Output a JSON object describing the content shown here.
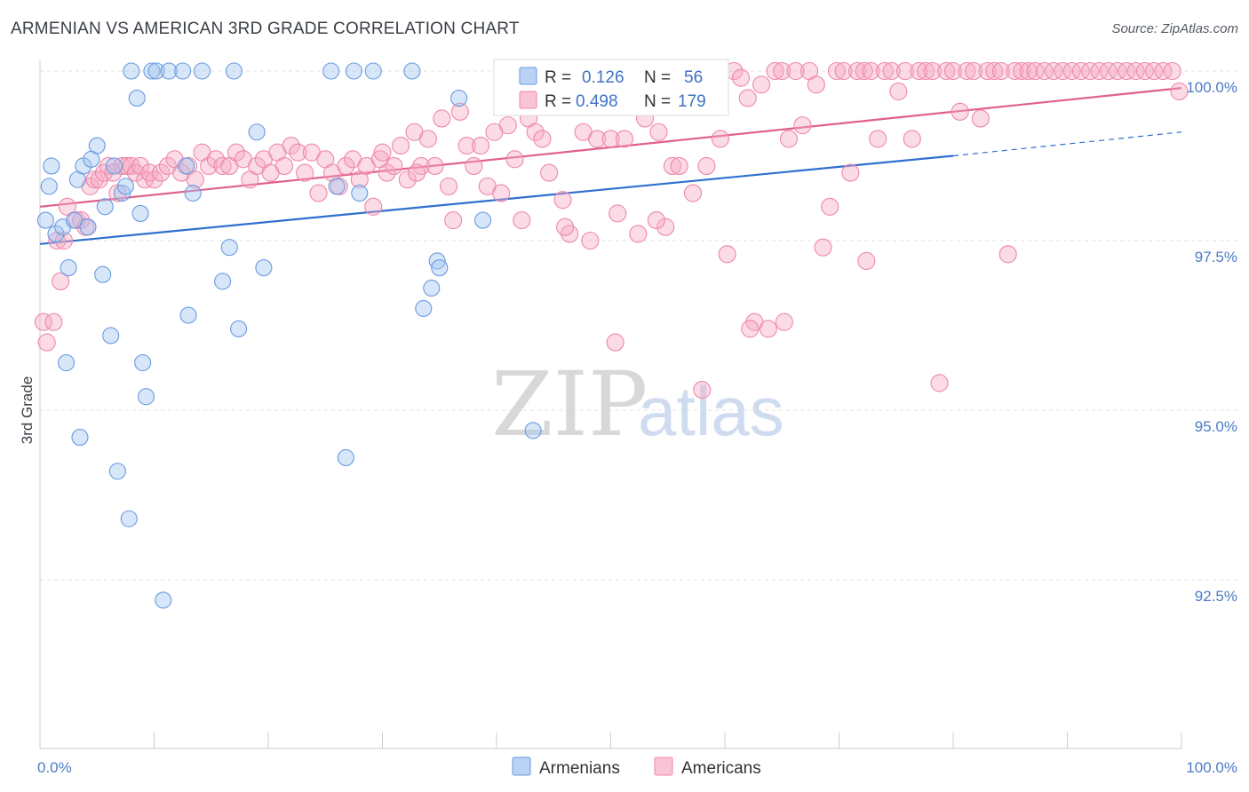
{
  "header": {
    "title": "ARMENIAN VS AMERICAN 3RD GRADE CORRELATION CHART",
    "source": "Source: ZipAtlas.com"
  },
  "watermark": {
    "zip": "ZIP",
    "atlas": "atlas"
  },
  "legend": {
    "r_label": "R =",
    "n_label": "N =",
    "armenians": {
      "r": "0.126",
      "n": "56"
    },
    "americans": {
      "r": "0.498",
      "n": "179"
    }
  },
  "chart_data": {
    "type": "scatter",
    "title": "ARMENIAN VS AMERICAN 3RD GRADE CORRELATION CHART",
    "xlabel": "",
    "ylabel": "3rd Grade",
    "xlim": [
      0,
      100
    ],
    "ylim": [
      90.0,
      100.3
    ],
    "x_tick_labels": [
      "0.0%",
      "100.0%"
    ],
    "y_ticks": [
      {
        "value": 100.0,
        "label": "100.0%"
      },
      {
        "value": 97.5,
        "label": "97.5%"
      },
      {
        "value": 95.0,
        "label": "95.0%"
      },
      {
        "value": 92.5,
        "label": "92.5%"
      }
    ],
    "grid": true,
    "legend_position": "bottom-center",
    "colors": {
      "armenians": "#6a9be0",
      "americans": "#ee88aa",
      "armenians_line": "#2e6fcf",
      "americans_line": "#e0608a"
    },
    "series": [
      {
        "name": "Armenians",
        "r": 0.126,
        "n": 56,
        "trend": {
          "x0": 0,
          "y0": 97.45,
          "x1": 80,
          "y1": 98.75,
          "dash_x1": 100,
          "dash_y1": 99.1
        },
        "points": [
          [
            0.5,
            97.8
          ],
          [
            0.8,
            98.3
          ],
          [
            1.0,
            98.6
          ],
          [
            1.4,
            97.6
          ],
          [
            2.0,
            97.7
          ],
          [
            2.3,
            95.7
          ],
          [
            2.5,
            97.1
          ],
          [
            3.0,
            97.8
          ],
          [
            3.3,
            98.4
          ],
          [
            3.5,
            94.6
          ],
          [
            3.8,
            98.6
          ],
          [
            4.2,
            97.7
          ],
          [
            4.5,
            98.7
          ],
          [
            5.0,
            98.9
          ],
          [
            5.5,
            97.0
          ],
          [
            5.7,
            98.0
          ],
          [
            6.2,
            96.1
          ],
          [
            6.5,
            98.6
          ],
          [
            6.8,
            94.1
          ],
          [
            7.2,
            98.2
          ],
          [
            7.5,
            98.3
          ],
          [
            7.8,
            93.4
          ],
          [
            8.0,
            100.0
          ],
          [
            8.5,
            99.6
          ],
          [
            8.8,
            97.9
          ],
          [
            9.0,
            95.7
          ],
          [
            9.3,
            95.2
          ],
          [
            9.8,
            100.0
          ],
          [
            10.2,
            100.0
          ],
          [
            10.8,
            92.2
          ],
          [
            11.3,
            100.0
          ],
          [
            12.5,
            100.0
          ],
          [
            12.8,
            98.6
          ],
          [
            13.0,
            96.4
          ],
          [
            13.4,
            98.2
          ],
          [
            14.2,
            100.0
          ],
          [
            16.0,
            96.9
          ],
          [
            16.6,
            97.4
          ],
          [
            17.0,
            100.0
          ],
          [
            17.4,
            96.2
          ],
          [
            19.0,
            99.1
          ],
          [
            19.6,
            97.1
          ],
          [
            25.5,
            100.0
          ],
          [
            26.0,
            98.3
          ],
          [
            26.8,
            94.3
          ],
          [
            27.5,
            100.0
          ],
          [
            28.0,
            98.2
          ],
          [
            29.2,
            100.0
          ],
          [
            32.6,
            100.0
          ],
          [
            33.6,
            96.5
          ],
          [
            34.3,
            96.8
          ],
          [
            34.8,
            97.2
          ],
          [
            35.0,
            97.1
          ],
          [
            36.7,
            99.6
          ],
          [
            38.8,
            97.8
          ],
          [
            43.2,
            94.7
          ]
        ]
      },
      {
        "name": "Americans",
        "r": 0.498,
        "n": 179,
        "trend": {
          "x0": 0,
          "y0": 98.0,
          "x1": 100,
          "y1": 99.75
        },
        "points": [
          [
            0.3,
            96.3
          ],
          [
            0.6,
            96.0
          ],
          [
            1.2,
            96.3
          ],
          [
            1.5,
            97.5
          ],
          [
            1.8,
            96.9
          ],
          [
            2.1,
            97.5
          ],
          [
            2.4,
            98.0
          ],
          [
            3.2,
            97.8
          ],
          [
            3.6,
            97.8
          ],
          [
            4.0,
            97.7
          ],
          [
            4.4,
            98.3
          ],
          [
            4.8,
            98.4
          ],
          [
            5.2,
            98.4
          ],
          [
            5.6,
            98.5
          ],
          [
            6.0,
            98.6
          ],
          [
            6.4,
            98.5
          ],
          [
            6.8,
            98.2
          ],
          [
            7.2,
            98.6
          ],
          [
            7.6,
            98.6
          ],
          [
            8.0,
            98.6
          ],
          [
            8.4,
            98.5
          ],
          [
            8.8,
            98.6
          ],
          [
            9.2,
            98.4
          ],
          [
            9.6,
            98.5
          ],
          [
            10.0,
            98.4
          ],
          [
            10.6,
            98.5
          ],
          [
            11.2,
            98.6
          ],
          [
            11.8,
            98.7
          ],
          [
            12.4,
            98.5
          ],
          [
            13.0,
            98.6
          ],
          [
            13.6,
            98.4
          ],
          [
            14.2,
            98.8
          ],
          [
            14.8,
            98.6
          ],
          [
            15.4,
            98.7
          ],
          [
            16.0,
            98.6
          ],
          [
            16.6,
            98.6
          ],
          [
            17.2,
            98.8
          ],
          [
            17.8,
            98.7
          ],
          [
            18.4,
            98.4
          ],
          [
            19.0,
            98.6
          ],
          [
            19.6,
            98.7
          ],
          [
            20.2,
            98.5
          ],
          [
            20.8,
            98.8
          ],
          [
            21.4,
            98.6
          ],
          [
            22.0,
            98.9
          ],
          [
            22.6,
            98.8
          ],
          [
            23.2,
            98.5
          ],
          [
            23.8,
            98.8
          ],
          [
            24.4,
            98.2
          ],
          [
            25.0,
            98.7
          ],
          [
            25.6,
            98.5
          ],
          [
            26.2,
            98.3
          ],
          [
            26.8,
            98.6
          ],
          [
            27.4,
            98.7
          ],
          [
            28.0,
            98.4
          ],
          [
            28.6,
            98.6
          ],
          [
            29.2,
            98.0
          ],
          [
            29.8,
            98.7
          ],
          [
            30.4,
            98.5
          ],
          [
            31.0,
            98.6
          ],
          [
            31.6,
            98.9
          ],
          [
            32.2,
            98.4
          ],
          [
            32.8,
            99.1
          ],
          [
            33.4,
            98.6
          ],
          [
            34.0,
            99.0
          ],
          [
            34.6,
            98.6
          ],
          [
            35.2,
            99.3
          ],
          [
            35.8,
            98.3
          ],
          [
            36.2,
            97.8
          ],
          [
            36.8,
            99.4
          ],
          [
            37.4,
            98.9
          ],
          [
            38.0,
            98.6
          ],
          [
            38.6,
            98.9
          ],
          [
            39.2,
            98.3
          ],
          [
            39.8,
            99.1
          ],
          [
            40.4,
            98.2
          ],
          [
            41.0,
            99.2
          ],
          [
            41.6,
            98.7
          ],
          [
            42.2,
            97.8
          ],
          [
            42.8,
            99.3
          ],
          [
            43.4,
            99.1
          ],
          [
            44.0,
            99.0
          ],
          [
            44.6,
            98.5
          ],
          [
            45.2,
            99.6
          ],
          [
            45.8,
            98.1
          ],
          [
            46.4,
            97.6
          ],
          [
            47.0,
            99.5
          ],
          [
            47.6,
            99.1
          ],
          [
            48.2,
            97.5
          ],
          [
            48.8,
            99.0
          ],
          [
            49.4,
            99.7
          ],
          [
            50.0,
            99.0
          ],
          [
            50.6,
            97.9
          ],
          [
            51.2,
            99.0
          ],
          [
            51.8,
            99.6
          ],
          [
            52.4,
            97.6
          ],
          [
            53.0,
            99.3
          ],
          [
            53.6,
            99.5
          ],
          [
            54.2,
            99.1
          ],
          [
            54.8,
            97.7
          ],
          [
            55.4,
            98.6
          ],
          [
            56.0,
            98.6
          ],
          [
            56.6,
            99.5
          ],
          [
            57.2,
            98.2
          ],
          [
            57.8,
            99.9
          ],
          [
            58.4,
            98.6
          ],
          [
            59.0,
            100.0
          ],
          [
            59.6,
            99.0
          ],
          [
            60.2,
            97.3
          ],
          [
            60.8,
            100.0
          ],
          [
            61.4,
            99.9
          ],
          [
            62.0,
            99.6
          ],
          [
            62.6,
            96.3
          ],
          [
            63.2,
            99.8
          ],
          [
            63.8,
            96.2
          ],
          [
            64.4,
            100.0
          ],
          [
            65.0,
            100.0
          ],
          [
            65.6,
            99.0
          ],
          [
            66.2,
            100.0
          ],
          [
            66.8,
            99.2
          ],
          [
            67.4,
            100.0
          ],
          [
            68.0,
            99.8
          ],
          [
            68.6,
            97.4
          ],
          [
            69.2,
            98.0
          ],
          [
            69.8,
            100.0
          ],
          [
            70.4,
            100.0
          ],
          [
            71.0,
            98.5
          ],
          [
            71.6,
            100.0
          ],
          [
            72.2,
            100.0
          ],
          [
            72.8,
            100.0
          ],
          [
            73.4,
            99.0
          ],
          [
            74.0,
            100.0
          ],
          [
            74.6,
            100.0
          ],
          [
            75.2,
            99.7
          ],
          [
            75.8,
            100.0
          ],
          [
            76.4,
            99.0
          ],
          [
            77.0,
            100.0
          ],
          [
            77.6,
            100.0
          ],
          [
            78.2,
            100.0
          ],
          [
            78.8,
            95.4
          ],
          [
            79.4,
            100.0
          ],
          [
            80.0,
            100.0
          ],
          [
            80.6,
            99.4
          ],
          [
            81.2,
            100.0
          ],
          [
            81.8,
            100.0
          ],
          [
            82.4,
            99.3
          ],
          [
            83.0,
            100.0
          ],
          [
            83.6,
            100.0
          ],
          [
            84.2,
            100.0
          ],
          [
            84.8,
            97.3
          ],
          [
            85.4,
            100.0
          ],
          [
            86.0,
            100.0
          ],
          [
            86.6,
            100.0
          ],
          [
            87.2,
            100.0
          ],
          [
            88.0,
            100.0
          ],
          [
            88.8,
            100.0
          ],
          [
            89.6,
            100.0
          ],
          [
            90.4,
            100.0
          ],
          [
            91.2,
            100.0
          ],
          [
            92.0,
            100.0
          ],
          [
            92.8,
            100.0
          ],
          [
            93.6,
            100.0
          ],
          [
            94.4,
            100.0
          ],
          [
            95.2,
            100.0
          ],
          [
            96.0,
            100.0
          ],
          [
            96.8,
            100.0
          ],
          [
            97.6,
            100.0
          ],
          [
            98.4,
            100.0
          ],
          [
            99.2,
            100.0
          ],
          [
            99.8,
            99.7
          ],
          [
            58.0,
            95.3
          ],
          [
            50.4,
            96.0
          ],
          [
            46.0,
            97.7
          ],
          [
            65.2,
            96.3
          ],
          [
            54.0,
            97.8
          ],
          [
            62.2,
            96.2
          ],
          [
            72.4,
            97.2
          ],
          [
            30.0,
            98.8
          ],
          [
            33.0,
            98.5
          ]
        ]
      }
    ]
  }
}
